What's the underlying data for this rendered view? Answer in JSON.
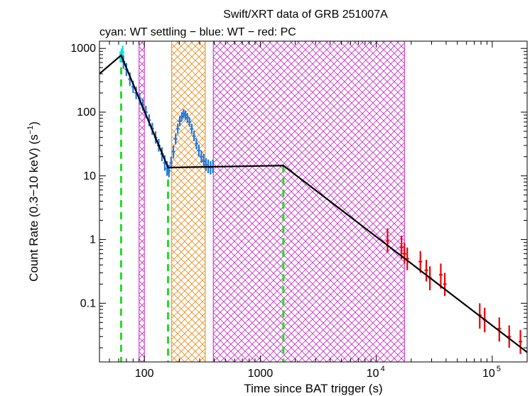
{
  "chart_data": {
    "type": "scatter",
    "title": "Swift/XRT data of GRB 251007A",
    "subtitle": "cyan: WT settling − blue: WT − red: PC",
    "xlabel": "Time since BAT trigger (s)",
    "ylabel_main": "Count Rate (0.3−10 keV) (s",
    "ylabel_sup": "−1",
    "ylabel_close": ")",
    "x_scale": "log",
    "y_scale": "log",
    "xlim": [
      41,
      200000
    ],
    "ylim": [
      0.012,
      1300
    ],
    "x_ticks": [
      {
        "value": 100,
        "label": "100"
      },
      {
        "value": 1000,
        "label": "1000"
      },
      {
        "value": 10000,
        "base": "10",
        "exp": "4"
      },
      {
        "value": 100000,
        "base": "10",
        "exp": "5"
      }
    ],
    "y_ticks": [
      {
        "value": 1000,
        "label": "1000"
      },
      {
        "value": 100,
        "label": "100"
      },
      {
        "value": 10,
        "label": "10"
      },
      {
        "value": 1,
        "label": "1"
      },
      {
        "value": 0.1,
        "label": "0.1"
      }
    ],
    "colors": {
      "wt_settling": "#00e5e5",
      "wt": "#1e78e0",
      "pc": "#ee0000",
      "fit": "#000000",
      "break_lines": "#22dd22",
      "magenta_shade": "#cc22cc",
      "orange_shade": "#ee8811"
    },
    "shaded_intervals": [
      {
        "x0": 90,
        "x1": 100,
        "color": "magenta"
      },
      {
        "x0": 172,
        "x1": 335,
        "color": "orange"
      },
      {
        "x0": 393,
        "x1": 17500,
        "color": "magenta"
      }
    ],
    "break_times": [
      63,
      160,
      1580
    ],
    "fit_model": [
      {
        "x": 41,
        "y": 400
      },
      {
        "x": 63,
        "y": 780
      },
      {
        "x": 160,
        "y": 13.5
      },
      {
        "x": 1580,
        "y": 14.5
      },
      {
        "x": 200000,
        "y": 0.017
      }
    ],
    "series": [
      {
        "name": "WT settling",
        "color_key": "wt_settling",
        "points": [
          {
            "x": 62,
            "y": 720,
            "lo": 600,
            "hi": 900
          },
          {
            "x": 63.5,
            "y": 800,
            "lo": 650,
            "hi": 1000
          },
          {
            "x": 65,
            "y": 860,
            "lo": 700,
            "hi": 1100
          }
        ]
      },
      {
        "name": "WT",
        "color_key": "wt",
        "points": [
          {
            "x": 66,
            "y": 620,
            "lo": 480,
            "hi": 780
          },
          {
            "x": 70,
            "y": 470,
            "lo": 370,
            "hi": 590
          },
          {
            "x": 75,
            "y": 330,
            "lo": 260,
            "hi": 420
          },
          {
            "x": 80,
            "y": 250,
            "lo": 200,
            "hi": 310
          },
          {
            "x": 85,
            "y": 200,
            "lo": 160,
            "hi": 250
          },
          {
            "x": 91,
            "y": 165,
            "lo": 130,
            "hi": 200
          },
          {
            "x": 97,
            "y": 130,
            "lo": 105,
            "hi": 160
          },
          {
            "x": 103,
            "y": 100,
            "lo": 80,
            "hi": 125
          },
          {
            "x": 110,
            "y": 75,
            "lo": 60,
            "hi": 92
          },
          {
            "x": 117,
            "y": 55,
            "lo": 44,
            "hi": 68
          },
          {
            "x": 125,
            "y": 40,
            "lo": 32,
            "hi": 50
          },
          {
            "x": 133,
            "y": 30,
            "lo": 24,
            "hi": 38
          },
          {
            "x": 142,
            "y": 22,
            "lo": 17,
            "hi": 28
          },
          {
            "x": 150,
            "y": 16,
            "lo": 12,
            "hi": 21
          },
          {
            "x": 157,
            "y": 13,
            "lo": 10,
            "hi": 17
          },
          {
            "x": 163,
            "y": 12,
            "lo": 9.5,
            "hi": 15
          },
          {
            "x": 170,
            "y": 16,
            "lo": 13,
            "hi": 20
          },
          {
            "x": 178,
            "y": 24,
            "lo": 19,
            "hi": 30
          },
          {
            "x": 186,
            "y": 38,
            "lo": 31,
            "hi": 46
          },
          {
            "x": 194,
            "y": 55,
            "lo": 46,
            "hi": 66
          },
          {
            "x": 202,
            "y": 72,
            "lo": 60,
            "hi": 86
          },
          {
            "x": 210,
            "y": 85,
            "lo": 71,
            "hi": 100
          },
          {
            "x": 218,
            "y": 95,
            "lo": 80,
            "hi": 112
          },
          {
            "x": 226,
            "y": 90,
            "lo": 76,
            "hi": 106
          },
          {
            "x": 235,
            "y": 82,
            "lo": 69,
            "hi": 97
          },
          {
            "x": 245,
            "y": 70,
            "lo": 59,
            "hi": 83
          },
          {
            "x": 256,
            "y": 55,
            "lo": 46,
            "hi": 66
          },
          {
            "x": 268,
            "y": 42,
            "lo": 35,
            "hi": 51
          },
          {
            "x": 281,
            "y": 32,
            "lo": 26,
            "hi": 39
          },
          {
            "x": 295,
            "y": 25,
            "lo": 20,
            "hi": 31
          },
          {
            "x": 310,
            "y": 20,
            "lo": 16,
            "hi": 25
          },
          {
            "x": 325,
            "y": 17,
            "lo": 13.5,
            "hi": 22
          },
          {
            "x": 340,
            "y": 15,
            "lo": 12,
            "hi": 19
          },
          {
            "x": 355,
            "y": 14,
            "lo": 11,
            "hi": 18
          },
          {
            "x": 372,
            "y": 13.5,
            "lo": 10.5,
            "hi": 17
          },
          {
            "x": 390,
            "y": 14,
            "lo": 11,
            "hi": 18
          }
        ]
      },
      {
        "name": "PC",
        "color_key": "pc",
        "points": [
          {
            "x": 12500,
            "y": 0.95,
            "lo": 0.62,
            "hi": 1.5
          },
          {
            "x": 16500,
            "y": 0.75,
            "lo": 0.5,
            "hi": 1.15
          },
          {
            "x": 17500,
            "y": 0.6,
            "lo": 0.42,
            "hi": 0.88
          },
          {
            "x": 18500,
            "y": 0.5,
            "lo": 0.33,
            "hi": 0.75
          },
          {
            "x": 24000,
            "y": 0.45,
            "lo": 0.3,
            "hi": 0.66
          },
          {
            "x": 27000,
            "y": 0.33,
            "lo": 0.22,
            "hi": 0.48
          },
          {
            "x": 29000,
            "y": 0.25,
            "lo": 0.16,
            "hi": 0.38
          },
          {
            "x": 36000,
            "y": 0.28,
            "lo": 0.17,
            "hi": 0.42
          },
          {
            "x": 39000,
            "y": 0.2,
            "lo": 0.13,
            "hi": 0.3
          },
          {
            "x": 78000,
            "y": 0.065,
            "lo": 0.04,
            "hi": 0.1
          },
          {
            "x": 86000,
            "y": 0.055,
            "lo": 0.035,
            "hi": 0.085
          },
          {
            "x": 115000,
            "y": 0.04,
            "lo": 0.025,
            "hi": 0.06
          },
          {
            "x": 140000,
            "y": 0.03,
            "lo": 0.02,
            "hi": 0.045
          },
          {
            "x": 175000,
            "y": 0.025,
            "lo": 0.016,
            "hi": 0.038
          }
        ]
      }
    ]
  }
}
